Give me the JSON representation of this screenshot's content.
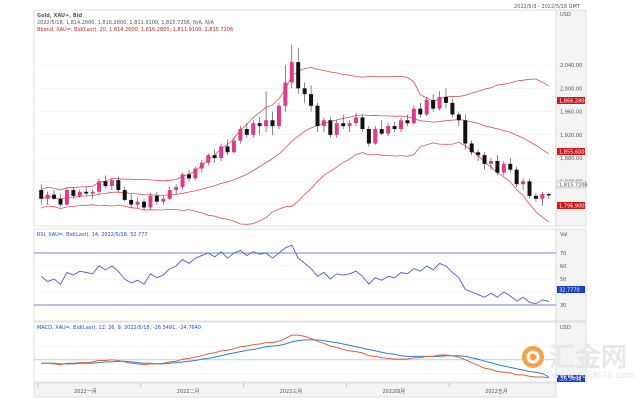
{
  "header": {
    "symbol_line": "Gold, XAU=, Bid",
    "ohlc_line": "2022/5/18, 1,814.2000, 1,816.2800, 1,811.9100, 1,815.7206, N/A, N/A",
    "bband_line": "Bband, XAU=, Bid(Last), 20, 1,814.2000, 1,816.2800, 1,811.9100, 1,815.7206",
    "top_right": "2022/5/3 - 2022/5/18 GMT"
  },
  "rsi_panel": {
    "legend": "RSI, XAU=, Bid(Last), 14, 2022/5/18, 32.777"
  },
  "macd_panel": {
    "legend": "MACD, XAU=, Bid(Last), 12, 26, 9, 2022/5/18, -26.3491, -24.7640"
  },
  "price_tags": {
    "last": "1,815.7206",
    "upper": "1,866.2800",
    "middle": "1,855.6000",
    "lower": "1,796.9000",
    "rsi_last": "32.7770",
    "macd_last": "-26.3491"
  },
  "axis_units": {
    "price": "USD",
    "rsi": "Val",
    "macd": "USD"
  },
  "x_tick_labels": [
    "2022一月",
    "2022二月",
    "2022三月",
    "2022四月",
    "2022五月"
  ],
  "watermark": {
    "cn": "汇金网",
    "url": "www.gold678.com"
  },
  "colors": {
    "up": "#e03a8a",
    "down": "#111111",
    "band": "#e05050",
    "rsi": "#4a5fd0",
    "macd": "#e06040",
    "signal": "#2f7fd0",
    "tag_red": "#d01818",
    "tag_blue": "#1a3fc0",
    "axis_bg": "#f2f2f2"
  },
  "chart_data": [
    {
      "type": "candlestick",
      "title": "Gold, XAU=, Bid",
      "ylabel": "USD",
      "ylim": [
        1770,
        2090
      ],
      "ohlc": [
        [
          1825,
          1835,
          1800,
          1810
        ],
        [
          1810,
          1822,
          1800,
          1817
        ],
        [
          1817,
          1825,
          1808,
          1810
        ],
        [
          1810,
          1818,
          1796,
          1800
        ],
        [
          1800,
          1828,
          1798,
          1825
        ],
        [
          1825,
          1830,
          1810,
          1815
        ],
        [
          1815,
          1826,
          1812,
          1822
        ],
        [
          1822,
          1830,
          1815,
          1819
        ],
        [
          1819,
          1826,
          1810,
          1822
        ],
        [
          1822,
          1845,
          1818,
          1840
        ],
        [
          1840,
          1850,
          1828,
          1832
        ],
        [
          1832,
          1845,
          1825,
          1842
        ],
        [
          1842,
          1848,
          1820,
          1825
        ],
        [
          1825,
          1830,
          1805,
          1808
        ],
        [
          1808,
          1818,
          1793,
          1800
        ],
        [
          1800,
          1812,
          1795,
          1805
        ],
        [
          1805,
          1810,
          1790,
          1795
        ],
        [
          1795,
          1820,
          1792,
          1815
        ],
        [
          1815,
          1822,
          1800,
          1805
        ],
        [
          1805,
          1815,
          1800,
          1810
        ],
        [
          1810,
          1830,
          1808,
          1825
        ],
        [
          1825,
          1835,
          1818,
          1830
        ],
        [
          1830,
          1855,
          1826,
          1852
        ],
        [
          1852,
          1860,
          1840,
          1845
        ],
        [
          1845,
          1865,
          1843,
          1862
        ],
        [
          1862,
          1876,
          1855,
          1872
        ],
        [
          1872,
          1888,
          1868,
          1885
        ],
        [
          1885,
          1895,
          1872,
          1880
        ],
        [
          1880,
          1905,
          1875,
          1900
        ],
        [
          1900,
          1912,
          1885,
          1890
        ],
        [
          1890,
          1915,
          1888,
          1910
        ],
        [
          1910,
          1935,
          1905,
          1930
        ],
        [
          1930,
          1940,
          1915,
          1920
        ],
        [
          1920,
          1945,
          1915,
          1940
        ],
        [
          1940,
          1950,
          1920,
          1935
        ],
        [
          1935,
          1995,
          1925,
          1945
        ],
        [
          1945,
          1960,
          1920,
          1935
        ],
        [
          1935,
          1975,
          1930,
          1970
        ],
        [
          1970,
          2040,
          1960,
          2010
        ],
        [
          2010,
          2075,
          2000,
          2045
        ],
        [
          2045,
          2070,
          1990,
          2000
        ],
        [
          2000,
          2010,
          1975,
          1990
        ],
        [
          1990,
          2005,
          1960,
          1970
        ],
        [
          1970,
          1975,
          1925,
          1935
        ],
        [
          1935,
          1950,
          1925,
          1945
        ],
        [
          1945,
          1950,
          1915,
          1920
        ],
        [
          1920,
          1945,
          1915,
          1940
        ],
        [
          1940,
          1955,
          1930,
          1935
        ],
        [
          1935,
          1945,
          1925,
          1940
        ],
        [
          1940,
          1958,
          1935,
          1950
        ],
        [
          1950,
          1955,
          1925,
          1930
        ],
        [
          1930,
          1935,
          1900,
          1905
        ],
        [
          1905,
          1935,
          1903,
          1930
        ],
        [
          1930,
          1945,
          1920,
          1922
        ],
        [
          1922,
          1940,
          1918,
          1935
        ],
        [
          1935,
          1942,
          1925,
          1930
        ],
        [
          1930,
          1950,
          1925,
          1945
        ],
        [
          1945,
          1955,
          1935,
          1940
        ],
        [
          1940,
          1970,
          1938,
          1965
        ],
        [
          1965,
          1975,
          1950,
          1955
        ],
        [
          1955,
          1985,
          1952,
          1980
        ],
        [
          1980,
          1990,
          1960,
          1965
        ],
        [
          1965,
          1995,
          1962,
          1985
        ],
        [
          1985,
          2000,
          1965,
          1975
        ],
        [
          1975,
          1982,
          1950,
          1955
        ],
        [
          1955,
          1960,
          1935,
          1945
        ],
        [
          1945,
          1955,
          1895,
          1905
        ],
        [
          1905,
          1910,
          1885,
          1890
        ],
        [
          1890,
          1895,
          1875,
          1885
        ],
        [
          1885,
          1890,
          1860,
          1870
        ],
        [
          1870,
          1880,
          1860,
          1875
        ],
        [
          1875,
          1885,
          1850,
          1855
        ],
        [
          1855,
          1875,
          1850,
          1870
        ],
        [
          1870,
          1880,
          1855,
          1860
        ],
        [
          1860,
          1865,
          1830,
          1835
        ],
        [
          1835,
          1845,
          1825,
          1840
        ],
        [
          1840,
          1845,
          1810,
          1815
        ],
        [
          1815,
          1820,
          1805,
          1810
        ],
        [
          1810,
          1822,
          1798,
          1818
        ],
        [
          1818,
          1820,
          1810,
          1815.72
        ]
      ],
      "bollinger": {
        "period": 20,
        "upper_last": 1866.28,
        "middle_last": 1855.6,
        "lower_last": 1796.9
      }
    },
    {
      "type": "line",
      "title": "RSI",
      "ylim": [
        20,
        80
      ],
      "reference_lines": [
        30,
        70
      ],
      "series": [
        {
          "name": "RSI",
          "values": [
            52,
            48,
            50,
            46,
            55,
            53,
            56,
            55,
            54,
            60,
            57,
            60,
            56,
            50,
            47,
            49,
            46,
            54,
            51,
            53,
            58,
            60,
            65,
            62,
            66,
            68,
            70,
            67,
            71,
            66,
            70,
            72,
            68,
            71,
            69,
            70,
            66,
            70,
            74,
            76,
            66,
            62,
            58,
            52,
            55,
            50,
            54,
            53,
            54,
            56,
            52,
            46,
            51,
            49,
            52,
            51,
            55,
            54,
            58,
            56,
            60,
            57,
            62,
            60,
            55,
            51,
            42,
            40,
            38,
            36,
            39,
            36,
            40,
            37,
            33,
            36,
            32,
            31,
            34,
            32.777
          ]
        }
      ]
    },
    {
      "type": "line",
      "title": "MACD",
      "series": [
        {
          "name": "MACD",
          "values": [
            -5,
            -5,
            -6,
            -7,
            -5,
            -5,
            -4,
            -4,
            -3,
            -1,
            -1,
            0,
            -1,
            -3,
            -5,
            -6,
            -7,
            -6,
            -6,
            -5,
            -3,
            -2,
            1,
            2,
            4,
            6,
            9,
            10,
            13,
            14,
            16,
            19,
            20,
            22,
            23,
            25,
            25,
            27,
            31,
            36,
            36,
            34,
            31,
            27,
            24,
            20,
            18,
            15,
            13,
            12,
            10,
            6,
            5,
            3,
            2,
            1,
            1,
            1,
            3,
            3,
            5,
            5,
            7,
            7,
            6,
            4,
            0,
            -4,
            -8,
            -12,
            -14,
            -17,
            -18,
            -19,
            -22,
            -22,
            -24,
            -25,
            -25,
            -26.35
          ]
        },
        {
          "name": "Signal",
          "values": [
            -5,
            -5,
            -5,
            -6,
            -6,
            -6,
            -5,
            -5,
            -5,
            -4,
            -3,
            -3,
            -2,
            -2,
            -3,
            -4,
            -5,
            -5,
            -6,
            -6,
            -5,
            -4,
            -3,
            -2,
            -1,
            1,
            2,
            4,
            6,
            8,
            10,
            12,
            14,
            15,
            17,
            19,
            20,
            21,
            23,
            26,
            28,
            29,
            29,
            29,
            28,
            26,
            25,
            23,
            21,
            19,
            17,
            15,
            13,
            11,
            9,
            8,
            6,
            5,
            5,
            5,
            5,
            5,
            5,
            6,
            6,
            6,
            5,
            3,
            1,
            -2,
            -4,
            -7,
            -9,
            -11,
            -13,
            -15,
            -17,
            -18,
            -20,
            -24.76
          ]
        }
      ]
    }
  ]
}
